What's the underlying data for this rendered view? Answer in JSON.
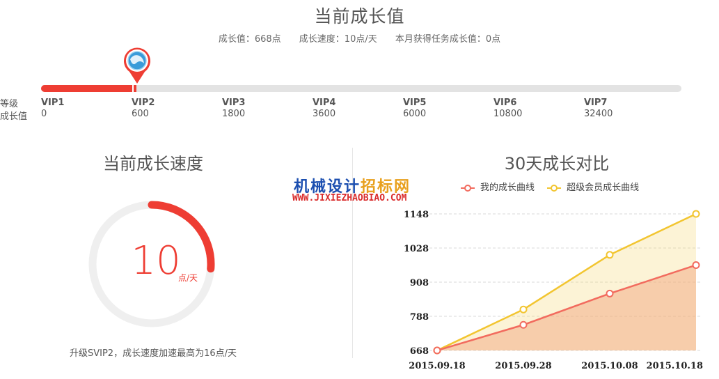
{
  "header": {
    "title": "当前成长值",
    "stats": {
      "growth_value": "成长值：668点",
      "growth_speed": "成长速度：10点/天",
      "task_growth": "本月获得任务成长值：0点"
    }
  },
  "levels": {
    "row_label_level": "等级",
    "row_label_value": "成长值",
    "progress_fraction_of_vip2_segment": 0.0,
    "items": [
      {
        "name": "VIP1",
        "value": "0"
      },
      {
        "name": "VIP2",
        "value": "600"
      },
      {
        "name": "VIP3",
        "value": "1800"
      },
      {
        "name": "VIP4",
        "value": "3600"
      },
      {
        "name": "VIP5",
        "value": "6000"
      },
      {
        "name": "VIP6",
        "value": "10800"
      },
      {
        "name": "VIP7",
        "value": "32400"
      }
    ]
  },
  "speed": {
    "title": "当前成长速度",
    "value": "10",
    "unit": "点/天",
    "max": 16,
    "tip": "升级SVIP2，成长速度加速最高为16点/天"
  },
  "comparison": {
    "title": "30天成长对比",
    "legend_mine": "我的成长曲线",
    "legend_svip": "超级会员成长曲线"
  },
  "watermark": {
    "line1_a": "机械设计",
    "line1_b": "招标网",
    "line2": "WWW.JIXIEZHAOBIAO.COM"
  },
  "colors": {
    "accent_red": "#ee3d33",
    "line_mine": "#f26b5e",
    "line_svip": "#f2c530",
    "track_gray": "#e3e3e3"
  },
  "chart_data": {
    "type": "area",
    "categories": [
      "2015.09.18",
      "2015.09.28",
      "2015.10.08",
      "2015.10.18"
    ],
    "yticks": [
      668,
      788,
      908,
      1028,
      1148
    ],
    "ylim": [
      668,
      1148
    ],
    "series": [
      {
        "name": "我的成长曲线",
        "values": [
          668,
          758,
          868,
          968
        ]
      },
      {
        "name": "超级会员成长曲线",
        "values": [
          668,
          812,
          1004,
          1148
        ]
      }
    ]
  }
}
